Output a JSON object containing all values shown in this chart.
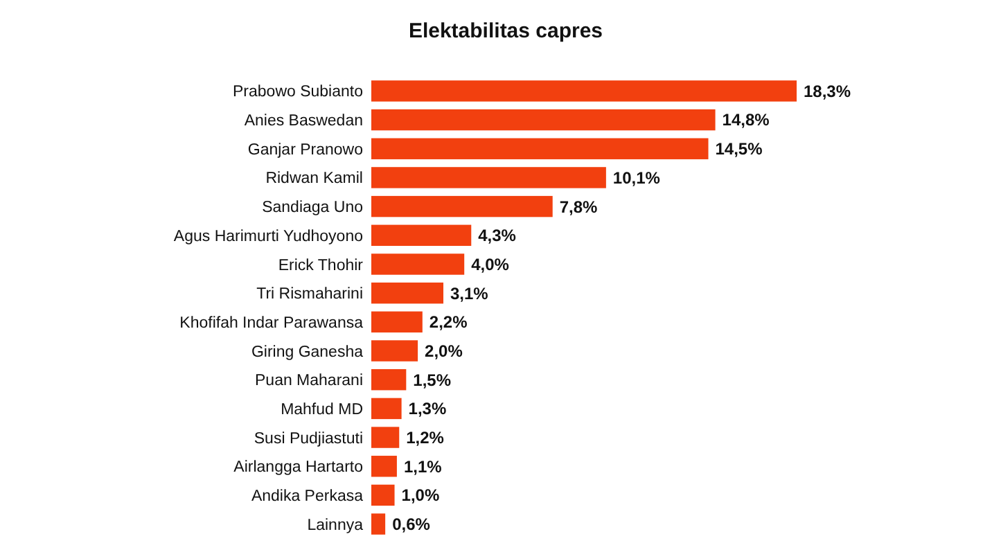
{
  "chart_data": {
    "type": "bar",
    "orientation": "horizontal",
    "title": "Elektabilitas capres",
    "categories": [
      "Prabowo Subianto",
      "Anies Baswedan",
      "Ganjar Pranowo",
      "Ridwan Kamil",
      "Sandiaga Uno",
      "Agus Harimurti Yudhoyono",
      "Erick Thohir",
      "Tri Rismaharini",
      "Khofifah Indar Parawansa",
      "Giring Ganesha",
      "Puan Maharani",
      "Mahfud MD",
      "Susi Pudjiastuti",
      "Airlangga Hartarto",
      "Andika Perkasa",
      "Lainnya"
    ],
    "values": [
      18.3,
      14.8,
      14.5,
      10.1,
      7.8,
      4.3,
      4.0,
      3.1,
      2.2,
      2.0,
      1.5,
      1.3,
      1.2,
      1.1,
      1.0,
      0.6
    ],
    "value_labels": [
      "18,3%",
      "14,8%",
      "14,5%",
      "10,1%",
      "7,8%",
      "4,3%",
      "4,0%",
      "3,1%",
      "2,2%",
      "2,0%",
      "1,5%",
      "1,3%",
      "1,2%",
      "1,1%",
      "1,0%",
      "0,6%"
    ],
    "color": "#f2400f"
  }
}
